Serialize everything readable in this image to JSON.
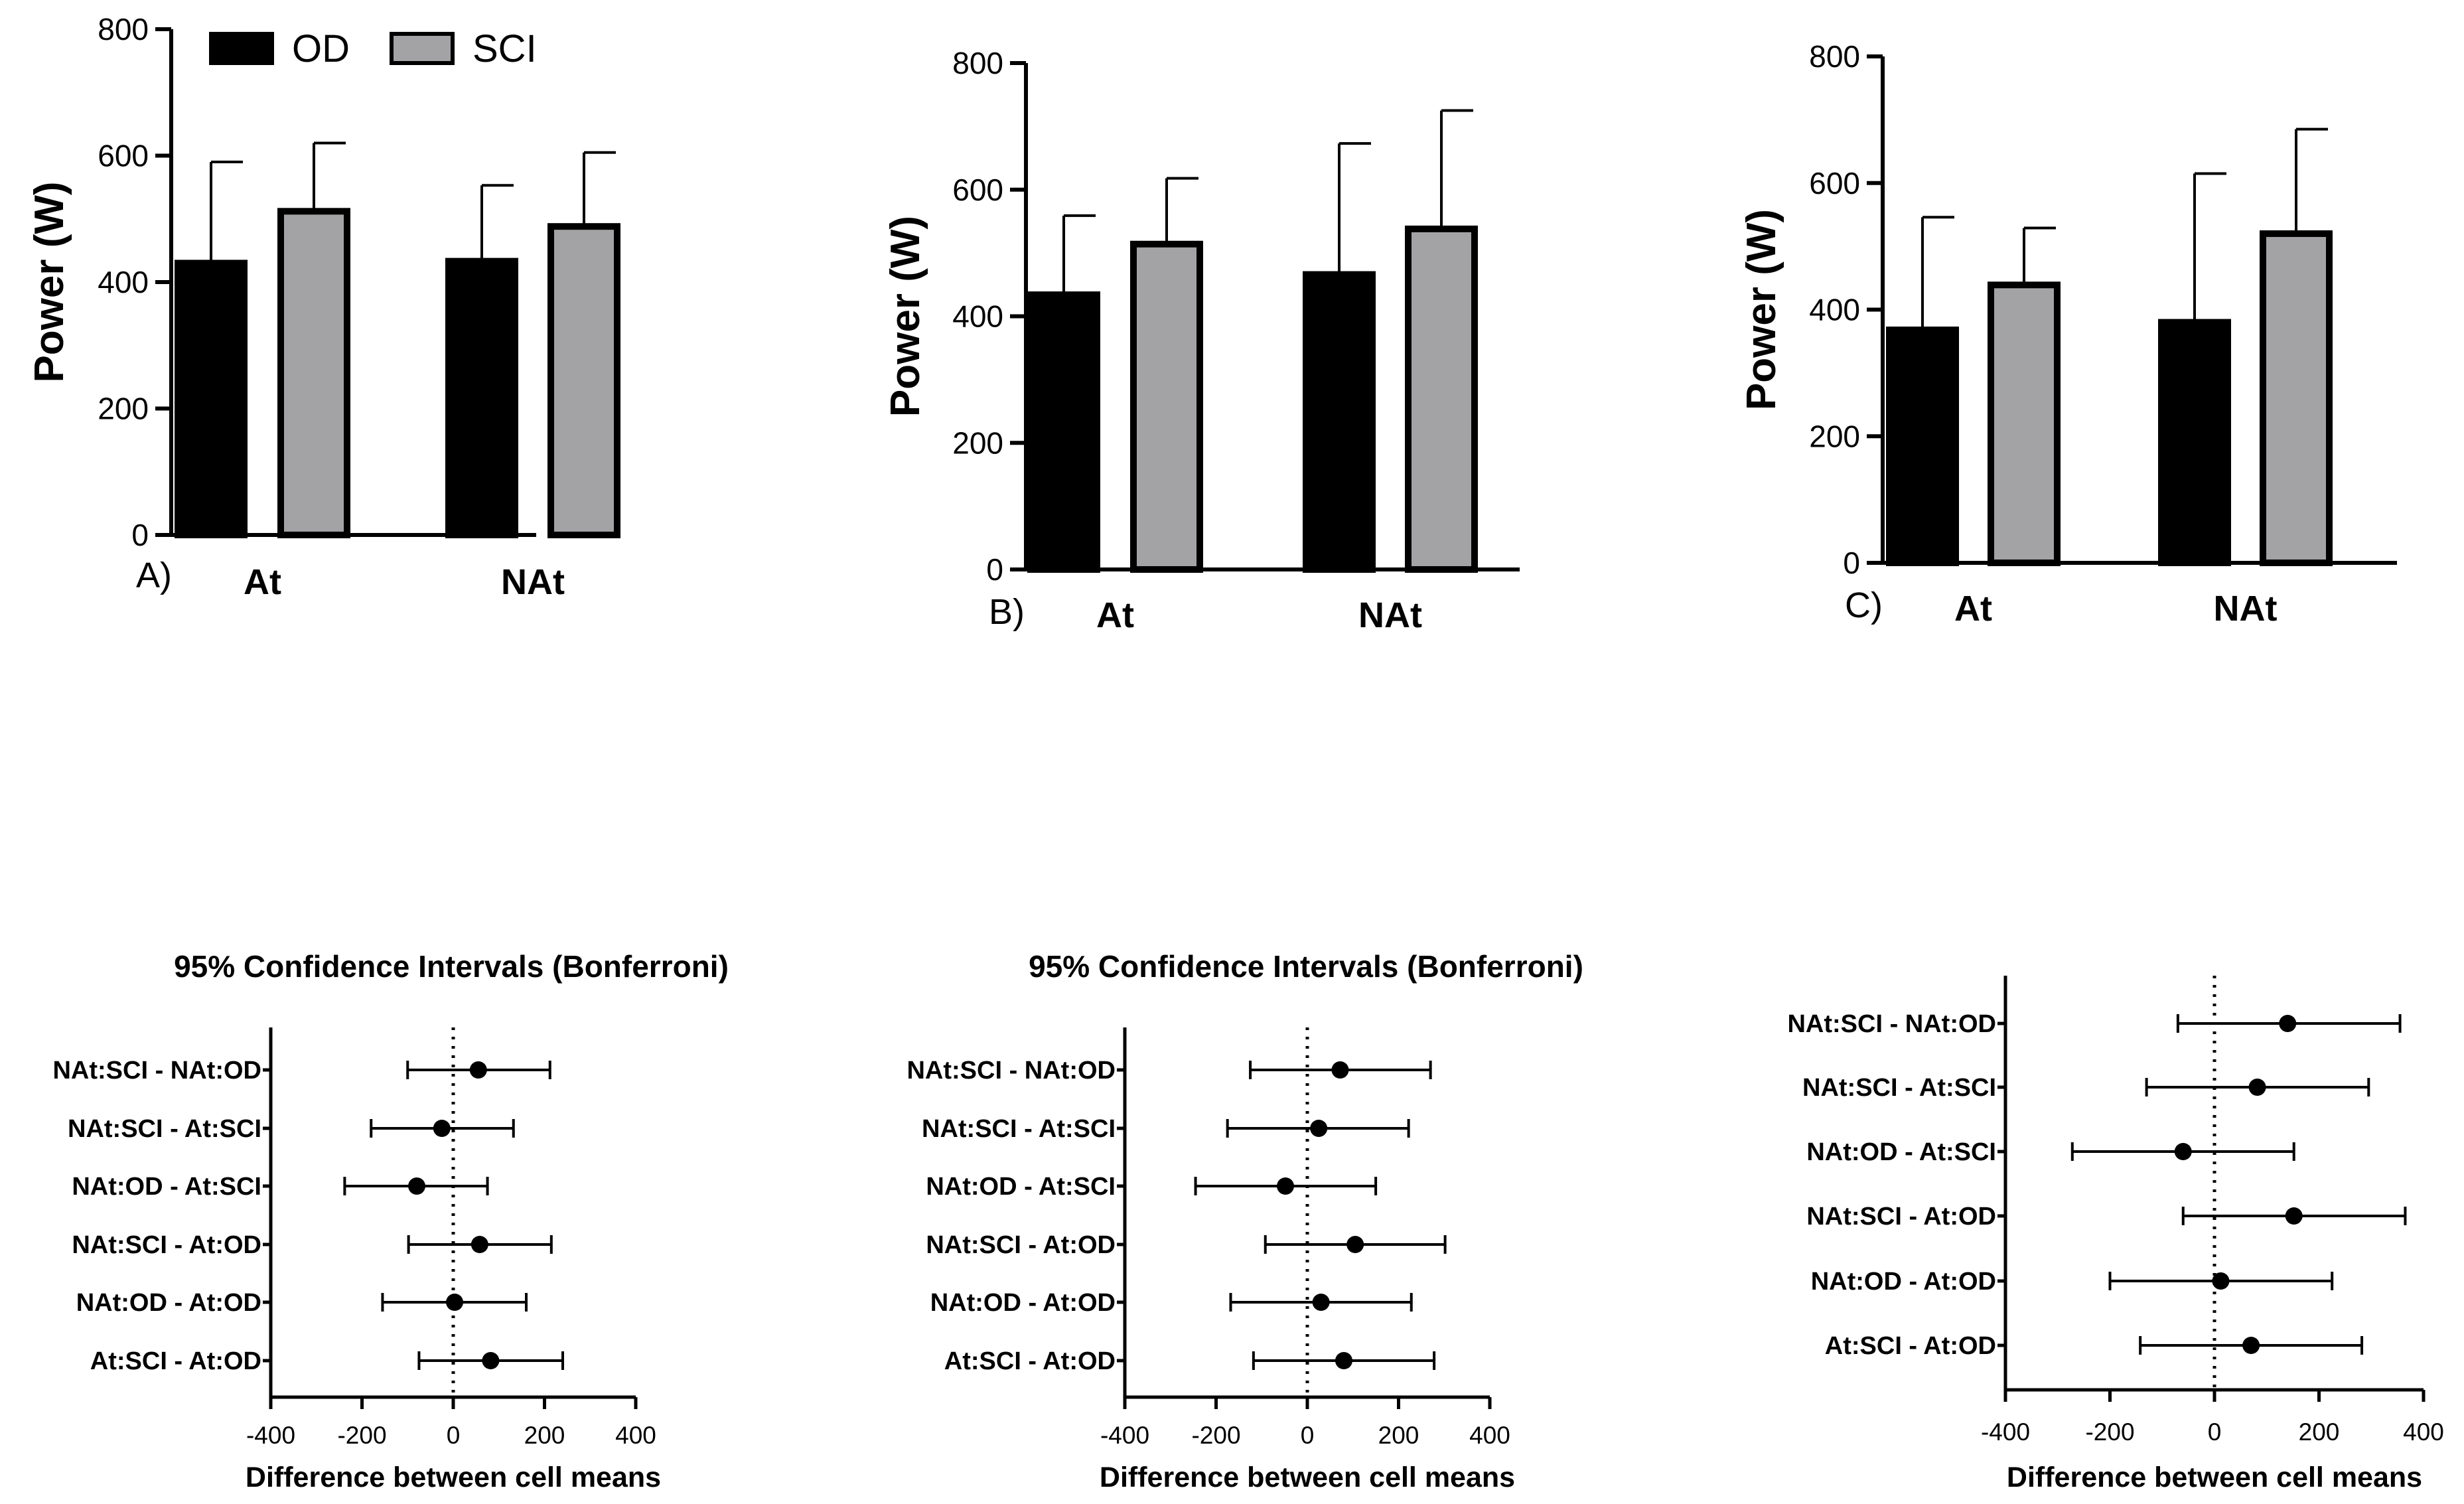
{
  "colors": {
    "od": "#000000",
    "sci": "#a3a3a6"
  },
  "chart_data": [
    {
      "type": "bar",
      "panel_label": "A)",
      "ylabel": "Power (W)",
      "ylim": [
        0,
        800
      ],
      "yticks": [
        "0",
        "200",
        "400",
        "600",
        "800"
      ],
      "categories": [
        "At",
        "NAt"
      ],
      "legend": [
        "OD",
        "SCI"
      ],
      "series": [
        {
          "name": "OD",
          "values": [
            430,
            433
          ],
          "error": [
            160,
            120
          ]
        },
        {
          "name": "SCI",
          "values": [
            512,
            488
          ],
          "error": [
            108,
            117
          ]
        }
      ]
    },
    {
      "type": "bar",
      "panel_label": "B)",
      "ylabel": "Power (W)",
      "ylim": [
        0,
        800
      ],
      "yticks": [
        "0",
        "200",
        "400",
        "600",
        "800"
      ],
      "categories": [
        "At",
        "NAt"
      ],
      "series": [
        {
          "name": "OD",
          "values": [
            434,
            466
          ],
          "error": [
            125,
            207
          ]
        },
        {
          "name": "SCI",
          "values": [
            514,
            538
          ],
          "error": [
            104,
            187
          ]
        }
      ]
    },
    {
      "type": "bar",
      "panel_label": "C)",
      "ylabel": "Power (W)",
      "ylim": [
        0,
        800
      ],
      "yticks": [
        "0",
        "200",
        "400",
        "600",
        "800"
      ],
      "categories": [
        "At",
        "NAt"
      ],
      "series": [
        {
          "name": "OD",
          "values": [
            368,
            380
          ],
          "error": [
            178,
            235
          ]
        },
        {
          "name": "SCI",
          "values": [
            439,
            520
          ],
          "error": [
            90,
            165
          ]
        }
      ]
    },
    {
      "type": "scatter",
      "title": "95% Confidence Intervals (Bonferroni)",
      "xlabel": "Difference between cell means",
      "xlim": [
        -400,
        400
      ],
      "xticks": [
        "-400",
        "-200",
        "0",
        "200",
        "400"
      ],
      "comparisons": [
        {
          "label": "NAt:SCI - NAt:OD",
          "mean": 55,
          "low": -100,
          "high": 212
        },
        {
          "label": "NAt:SCI - At:SCI",
          "mean": -25,
          "low": -180,
          "high": 132
        },
        {
          "label": "NAt:OD - At:SCI",
          "mean": -80,
          "low": -238,
          "high": 75
        },
        {
          "label": "NAt:SCI - At:OD",
          "mean": 58,
          "low": -98,
          "high": 215
        },
        {
          "label": "NAt:OD - At:OD",
          "mean": 3,
          "low": -155,
          "high": 160
        },
        {
          "label": "At:SCI - At:OD",
          "mean": 82,
          "low": -75,
          "high": 240
        }
      ]
    },
    {
      "type": "scatter",
      "title": "95% Confidence Intervals (Bonferroni)",
      "xlabel": "Difference between cell means",
      "xlim": [
        -400,
        400
      ],
      "xticks": [
        "-400",
        "-200",
        "0",
        "200",
        "400"
      ],
      "comparisons": [
        {
          "label": "NAt:SCI - NAt:OD",
          "mean": 72,
          "low": -125,
          "high": 270
        },
        {
          "label": "NAt:SCI - At:SCI",
          "mean": 25,
          "low": -175,
          "high": 222
        },
        {
          "label": "NAt:OD - At:SCI",
          "mean": -48,
          "low": -245,
          "high": 150
        },
        {
          "label": "NAt:SCI - At:OD",
          "mean": 105,
          "low": -92,
          "high": 302
        },
        {
          "label": "NAt:OD - At:OD",
          "mean": 30,
          "low": -168,
          "high": 228
        },
        {
          "label": "At:SCI - At:OD",
          "mean": 80,
          "low": -118,
          "high": 278
        }
      ]
    },
    {
      "type": "scatter",
      "title": "",
      "xlabel": "Difference between cell means",
      "xlim": [
        -400,
        400
      ],
      "xticks": [
        "-400",
        "-200",
        "0",
        "200",
        "400"
      ],
      "comparisons": [
        {
          "label": "NAt:SCI - NAt:OD",
          "mean": 140,
          "low": -70,
          "high": 355
        },
        {
          "label": "NAt:SCI - At:SCI",
          "mean": 82,
          "low": -130,
          "high": 295
        },
        {
          "label": "NAt:OD - At:SCI",
          "mean": -60,
          "low": -272,
          "high": 152
        },
        {
          "label": "NAt:SCI - At:OD",
          "mean": 152,
          "low": -60,
          "high": 365
        },
        {
          "label": "NAt:OD - At:OD",
          "mean": 12,
          "low": -200,
          "high": 225
        },
        {
          "label": "At:SCI - At:OD",
          "mean": 70,
          "low": -142,
          "high": 282
        }
      ]
    }
  ]
}
